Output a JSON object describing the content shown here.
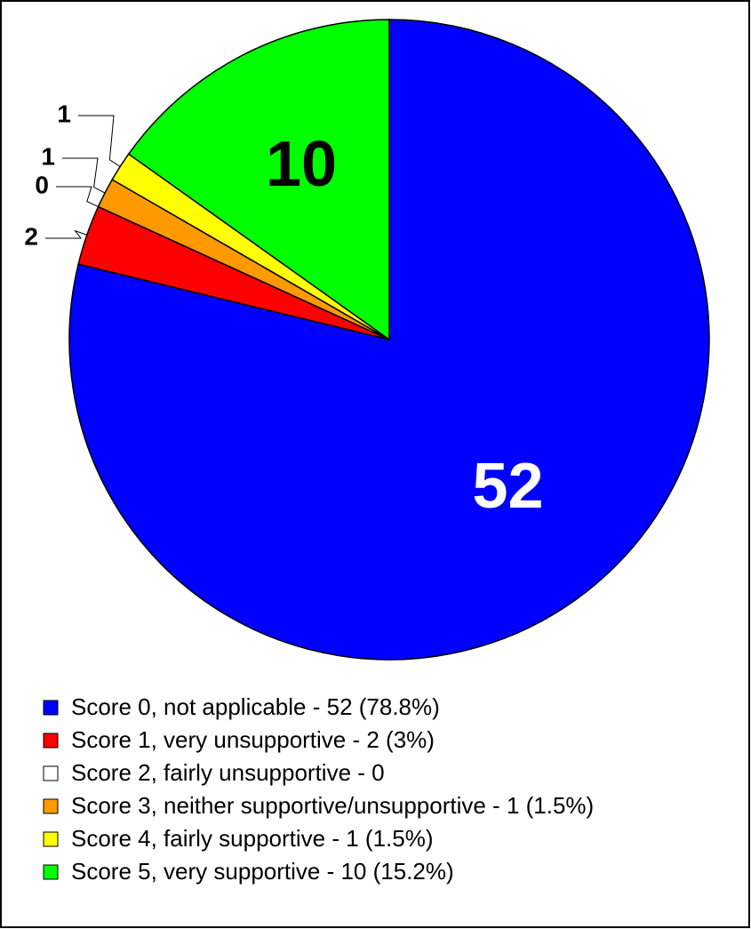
{
  "chart_data": {
    "type": "pie",
    "categories": [
      "Score 0, not applicable - 52 (78.8%)",
      "Score 1, very unsupportive - 2 (3%)",
      "Score 2, fairly unsupportive - 0",
      "Score 3, neither supportive/unsupportive - 1 (1.5%)",
      "Score 4, fairly supportive - 1 (1.5%)",
      "Score 5, very supportive - 10 (15.2%)"
    ],
    "values": [
      52,
      2,
      0,
      1,
      1,
      10
    ],
    "colors": [
      "#0000ff",
      "#ff0000",
      "#ffffff",
      "#ff9900",
      "#ffff00",
      "#00ff00"
    ]
  }
}
